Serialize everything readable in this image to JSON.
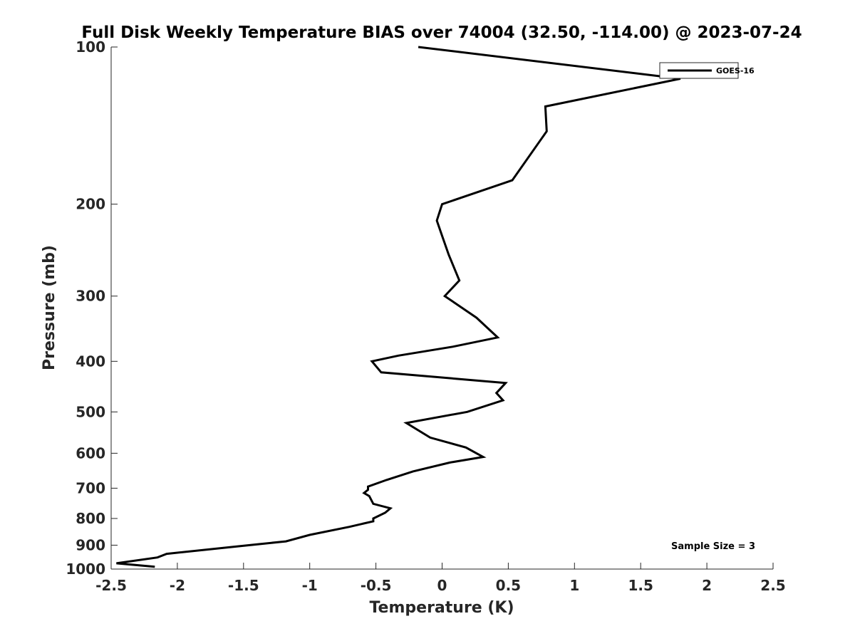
{
  "chart_data": {
    "type": "line",
    "title": "Full Disk Weekly Temperature BIAS over 74004 (32.50, -114.00) @ 2023-07-24",
    "xlabel": "Temperature (K)",
    "ylabel": "Pressure (mb)",
    "xlim": [
      -2.5,
      2.5
    ],
    "ylim": [
      100,
      1000
    ],
    "y_scale": "log",
    "y_reversed": true,
    "grid": false,
    "legend_position": "top-right",
    "x_ticks": [
      "-2.5",
      "-2",
      "-1.5",
      "-1",
      "-0.5",
      "0",
      "0.5",
      "1",
      "1.5",
      "2",
      "2.5"
    ],
    "y_ticks": [
      "100",
      "200",
      "300",
      "400",
      "500",
      "600",
      "700",
      "800",
      "900",
      "1000"
    ],
    "annotation": "Sample Size = 3",
    "series": [
      {
        "name": "GOES-16",
        "color": "#000000",
        "x": [
          -0.18,
          1.8,
          0.78,
          0.79,
          0.53,
          0.0,
          -0.04,
          0.0,
          0.05,
          0.13,
          0.02,
          0.26,
          0.42,
          0.08,
          -0.33,
          -0.53,
          -0.46,
          0.48,
          0.41,
          0.46,
          0.19,
          -0.27,
          -0.09,
          0.18,
          0.31,
          0.06,
          -0.22,
          -0.42,
          -0.56,
          -0.56,
          -0.59,
          -0.55,
          -0.52,
          -0.39,
          -0.43,
          -0.52,
          -0.52,
          -0.7,
          -1.0,
          -1.18,
          -1.55,
          -2.08,
          -2.15,
          -2.46,
          -2.17
        ],
        "y": [
          100,
          115,
          130,
          145,
          180,
          200,
          215,
          230,
          250,
          280,
          300,
          330,
          360,
          375,
          390,
          400,
          420,
          440,
          460,
          475,
          500,
          525,
          560,
          585,
          610,
          625,
          650,
          675,
          695,
          705,
          715,
          725,
          750,
          765,
          780,
          800,
          810,
          830,
          860,
          885,
          905,
          935,
          950,
          975,
          990
        ]
      }
    ]
  }
}
